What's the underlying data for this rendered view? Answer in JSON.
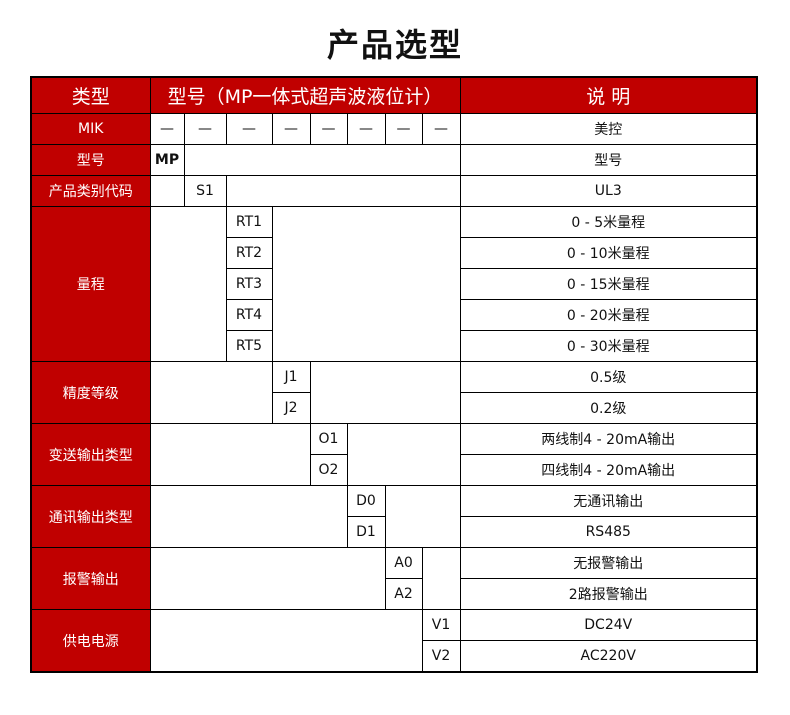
{
  "title": "产品选型",
  "header": {
    "type": "类型",
    "model": "型号（MP一体式超声波液位计）",
    "desc": "说 明"
  },
  "colors": {
    "accent": "#c00000"
  },
  "rows": {
    "mik": {
      "label": "MIK",
      "dash": "—",
      "desc": "美控"
    },
    "model": {
      "label": "型号",
      "code": "MP",
      "desc": "型号"
    },
    "category": {
      "label": "产品类别代码",
      "code": "S1",
      "desc": "UL3"
    },
    "range": {
      "label": "量程",
      "codes": [
        "RT1",
        "RT2",
        "RT3",
        "RT4",
        "RT5"
      ],
      "descs": [
        "0 - 5米量程",
        "0 - 10米量程",
        "0 - 15米量程",
        "0 - 20米量程",
        "0 - 30米量程"
      ]
    },
    "accuracy": {
      "label": "精度等级",
      "codes": [
        "J1",
        "J2"
      ],
      "descs": [
        "0.5级",
        "0.2级"
      ]
    },
    "transmit": {
      "label": "变送输出类型",
      "codes": [
        "O1",
        "O2"
      ],
      "descs": [
        "两线制4 - 20mA输出",
        "四线制4 - 20mA输出"
      ]
    },
    "comm": {
      "label": "通讯输出类型",
      "codes": [
        "D0",
        "D1"
      ],
      "descs": [
        "无通讯输出",
        "RS485"
      ]
    },
    "alarm": {
      "label": "报警输出",
      "codes": [
        "A0",
        "A2"
      ],
      "descs": [
        "无报警输出",
        "2路报警输出"
      ]
    },
    "power": {
      "label": "供电电源",
      "codes": [
        "V1",
        "V2"
      ],
      "descs": [
        "DC24V",
        "AC220V"
      ]
    }
  }
}
